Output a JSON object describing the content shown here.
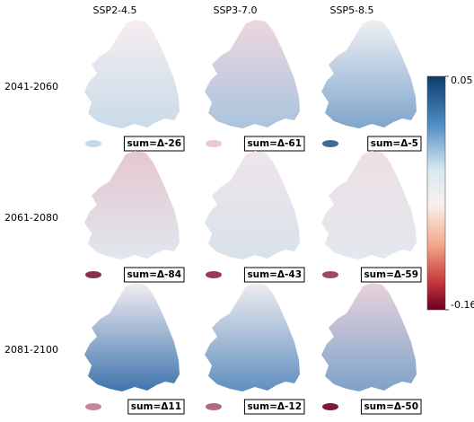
{
  "columns": [
    "SSP2-4.5",
    "SSP3-7.0",
    "SSP5-8.5"
  ],
  "rows": [
    {
      "label": "2041-2060",
      "sums": [
        "sum=Δ-26",
        "sum=Δ-61",
        "sum=Δ-5"
      ]
    },
    {
      "label": "2061-2080",
      "sums": [
        "sum=Δ-84",
        "sum=Δ-43",
        "sum=Δ-59"
      ]
    },
    {
      "label": "2081-2100",
      "sums": [
        "sum=Δ11",
        "sum=Δ-12",
        "sum=Δ-50"
      ]
    }
  ],
  "colorbar": {
    "range": [
      -0.16,
      0.05
    ],
    "ticks": [
      0.05,
      -0.16
    ]
  }
}
